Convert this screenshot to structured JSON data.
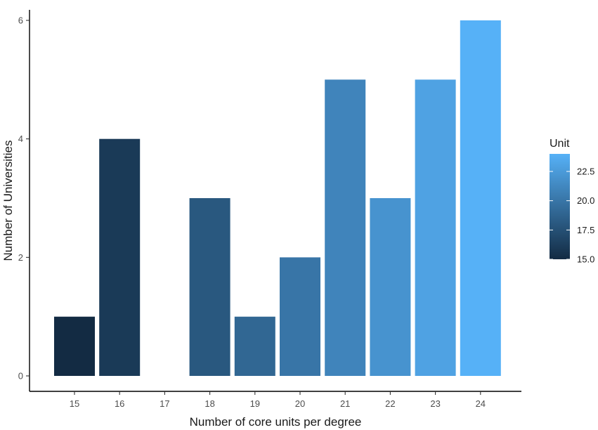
{
  "chart_data": {
    "type": "bar",
    "categories": [
      "15",
      "16",
      "17",
      "18",
      "19",
      "20",
      "21",
      "22",
      "23",
      "24"
    ],
    "values": [
      1,
      4,
      0,
      3,
      1,
      2,
      5,
      3,
      5,
      6
    ],
    "xlabel": "Number of core units per degree",
    "ylabel": "Number of Universities",
    "ylim": [
      0,
      6
    ],
    "yticks": [
      0,
      2,
      4,
      6
    ],
    "grid": false,
    "fill_by": "Unit",
    "color_scale": {
      "title": "Unit",
      "range": [
        15.0,
        24.0
      ],
      "ticks": [
        "15.0",
        "17.5",
        "20.0",
        "22.5"
      ],
      "low_color": "#132B43",
      "high_color": "#56B1F7"
    },
    "legend_position": "right"
  }
}
